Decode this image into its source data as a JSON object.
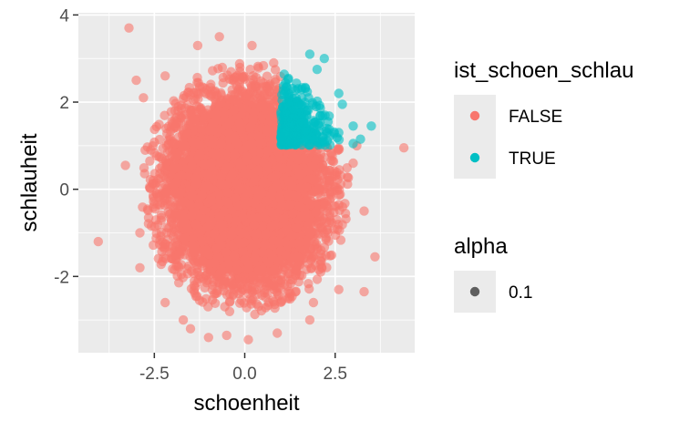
{
  "chart_data": {
    "type": "scatter",
    "title": "",
    "xlabel": "schoenheit",
    "ylabel": "schlauheit",
    "xlim": [
      -4.6,
      4.7
    ],
    "ylim": [
      -3.75,
      4.05
    ],
    "x_ticks": [
      -2.5,
      0.0,
      2.5
    ],
    "x_tick_labels": [
      "-2.5",
      "0.0",
      "2.5"
    ],
    "y_ticks": [
      -2,
      0,
      2,
      4
    ],
    "y_tick_labels": [
      "-2",
      "0",
      "2",
      "4"
    ],
    "grid": true,
    "panel_background": "#ebebeb",
    "point_alpha": 0.6,
    "legend": {
      "placement": "right",
      "color_title": "ist_schoen_schlau",
      "color_entries": [
        {
          "label": "FALSE",
          "color": "#f8766d"
        },
        {
          "label": "TRUE",
          "color": "#00bfc4"
        }
      ],
      "alpha_title": "alpha",
      "alpha_entries": [
        {
          "label": "0.1",
          "color": "#000000"
        }
      ]
    },
    "series": [
      {
        "name": "FALSE",
        "color": "#f8766d",
        "bulk_distribution": {
          "type": "bivariate_normal",
          "mean": [
            0,
            0
          ],
          "sd": [
            1,
            1
          ],
          "n": 9000,
          "excludes_region": "x > 1 and y > 1"
        },
        "outliers": [
          [
            -3.2,
            3.7
          ],
          [
            -4.05,
            -1.2
          ],
          [
            -3.0,
            2.5
          ],
          [
            -2.8,
            2.1
          ],
          [
            -3.3,
            0.55
          ],
          [
            -2.9,
            -1.0
          ],
          [
            -2.9,
            -1.8
          ],
          [
            -2.2,
            -2.6
          ],
          [
            -1.7,
            -3.0
          ],
          [
            -1.5,
            -3.2
          ],
          [
            -1.0,
            -3.4
          ],
          [
            -0.5,
            -3.35
          ],
          [
            0.1,
            -3.45
          ],
          [
            0.9,
            -3.3
          ],
          [
            1.8,
            -3.0
          ],
          [
            2.6,
            -2.3
          ],
          [
            3.3,
            -2.35
          ],
          [
            3.6,
            -1.55
          ],
          [
            3.3,
            -0.5
          ],
          [
            3.0,
            0.6
          ],
          [
            3.1,
            1.0
          ],
          [
            2.5,
            0.3
          ],
          [
            4.4,
            0.95
          ],
          [
            -0.7,
            3.5
          ],
          [
            -1.3,
            3.3
          ],
          [
            0.2,
            3.3
          ],
          [
            0.8,
            2.9
          ],
          [
            -2.2,
            2.6
          ],
          [
            1.9,
            -2.6
          ],
          [
            -2.6,
            0.9
          ]
        ]
      },
      {
        "name": "TRUE",
        "color": "#00bfc4",
        "bulk_distribution": {
          "type": "truncated_bivariate_normal",
          "region": "x > 1 and y > 1",
          "n": 320
        },
        "outliers": [
          [
            1.8,
            3.1
          ],
          [
            2.2,
            3.0
          ],
          [
            2.0,
            2.75
          ],
          [
            2.6,
            2.2
          ],
          [
            2.7,
            1.95
          ],
          [
            3.0,
            1.45
          ],
          [
            3.5,
            1.45
          ],
          [
            3.2,
            1.15
          ],
          [
            3.0,
            1.05
          ],
          [
            2.6,
            1.3
          ]
        ]
      }
    ]
  }
}
